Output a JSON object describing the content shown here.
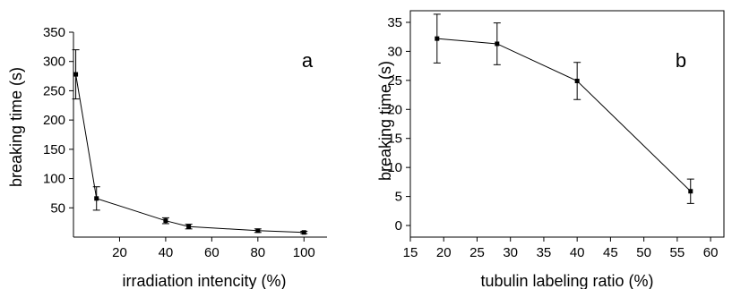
{
  "chart_data": [
    {
      "type": "line",
      "panel_label": "a",
      "xlabel": "irradiation intencity (%)",
      "ylabel": "breaking time (s)",
      "xlim": [
        0,
        110
      ],
      "ylim": [
        0,
        350
      ],
      "xticks": [
        20,
        40,
        60,
        80,
        100
      ],
      "yticks": [
        50,
        100,
        150,
        200,
        250,
        300,
        350
      ],
      "grid": false,
      "series": [
        {
          "x": [
            1,
            10,
            40,
            50,
            80,
            100
          ],
          "y": [
            278,
            66,
            28,
            18,
            11,
            8
          ],
          "err": [
            42,
            20,
            5,
            4,
            3,
            2
          ]
        }
      ]
    },
    {
      "type": "line",
      "panel_label": "b",
      "xlabel": "tubulin labeling ratio (%)",
      "ylabel": "breaking time (s)",
      "xlim": [
        15,
        62
      ],
      "ylim": [
        -2,
        37
      ],
      "xticks": [
        15,
        20,
        25,
        30,
        35,
        40,
        45,
        50,
        55,
        60
      ],
      "yticks": [
        0,
        5,
        10,
        15,
        20,
        25,
        30,
        35
      ],
      "grid": false,
      "series": [
        {
          "x": [
            19,
            28,
            40,
            57
          ],
          "y": [
            32.2,
            31.3,
            24.9,
            5.9
          ],
          "err": [
            4.2,
            3.6,
            3.2,
            2.1
          ]
        }
      ]
    }
  ]
}
